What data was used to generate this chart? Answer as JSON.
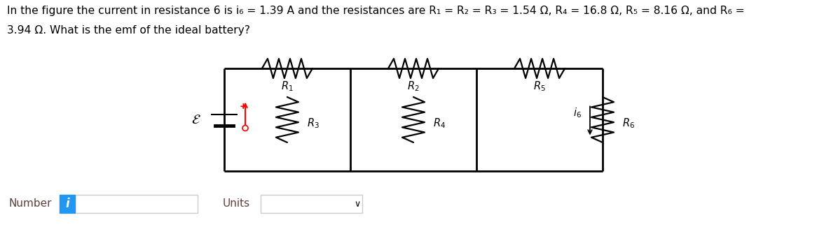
{
  "title_line1": "In the figure the current in resistance 6 is i₆ = 1.39 A and the resistances are R₁ = R₂ = R₃ = 1.54 Ω, R₄ = 16.8 Ω, R₅ = 8.16 Ω, and R₆ =",
  "title_line2": "3.94 Ω. What is the emf of the ideal battery?",
  "number_label": "Number",
  "units_label": "Units",
  "background_color": "#ffffff",
  "text_color": "#000000",
  "circuit_color": "#000000",
  "info_box_color": "#2196f3",
  "box_outline_color": "#cccccc",
  "font_size_title": 11.2,
  "font_size_labels": 11,
  "label_color": "#333333"
}
